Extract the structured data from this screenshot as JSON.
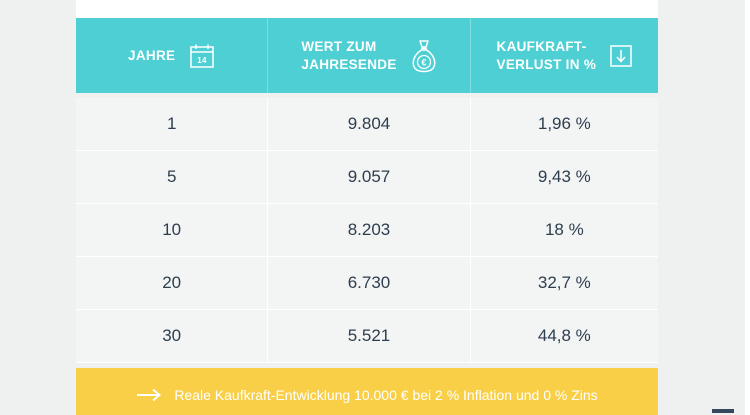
{
  "table": {
    "headers": [
      {
        "label": "Jahre",
        "icon": "calendar-icon",
        "icon_text": "14"
      },
      {
        "label": "Wert zum\nJahresende",
        "icon": "money-bag-icon",
        "icon_text": "€"
      },
      {
        "label": "Kaufkraft-\nverlust in %",
        "icon": "arrow-down-box-icon"
      }
    ],
    "rows": [
      {
        "jahre": "1",
        "wert": "9.804",
        "verlust": "1,96 %"
      },
      {
        "jahre": "5",
        "wert": "9.057",
        "verlust": "9,43 %"
      },
      {
        "jahre": "10",
        "wert": "8.203",
        "verlust": "18 %"
      },
      {
        "jahre": "20",
        "wert": "6.730",
        "verlust": "32,7 %"
      },
      {
        "jahre": "30",
        "wert": "5.521",
        "verlust": "44,8 %"
      }
    ],
    "footer": {
      "icon": "arrow-right-icon",
      "text": "Reale Kaufkraft-Entwicklung 10.000 € bei 2 % Inflation und 0 % Zins"
    }
  },
  "colors": {
    "header_bg": "#4ecfd3",
    "footer_bg": "#f8cf47",
    "row_bg": "#f3f4f4",
    "text": "#2e3e4e"
  }
}
